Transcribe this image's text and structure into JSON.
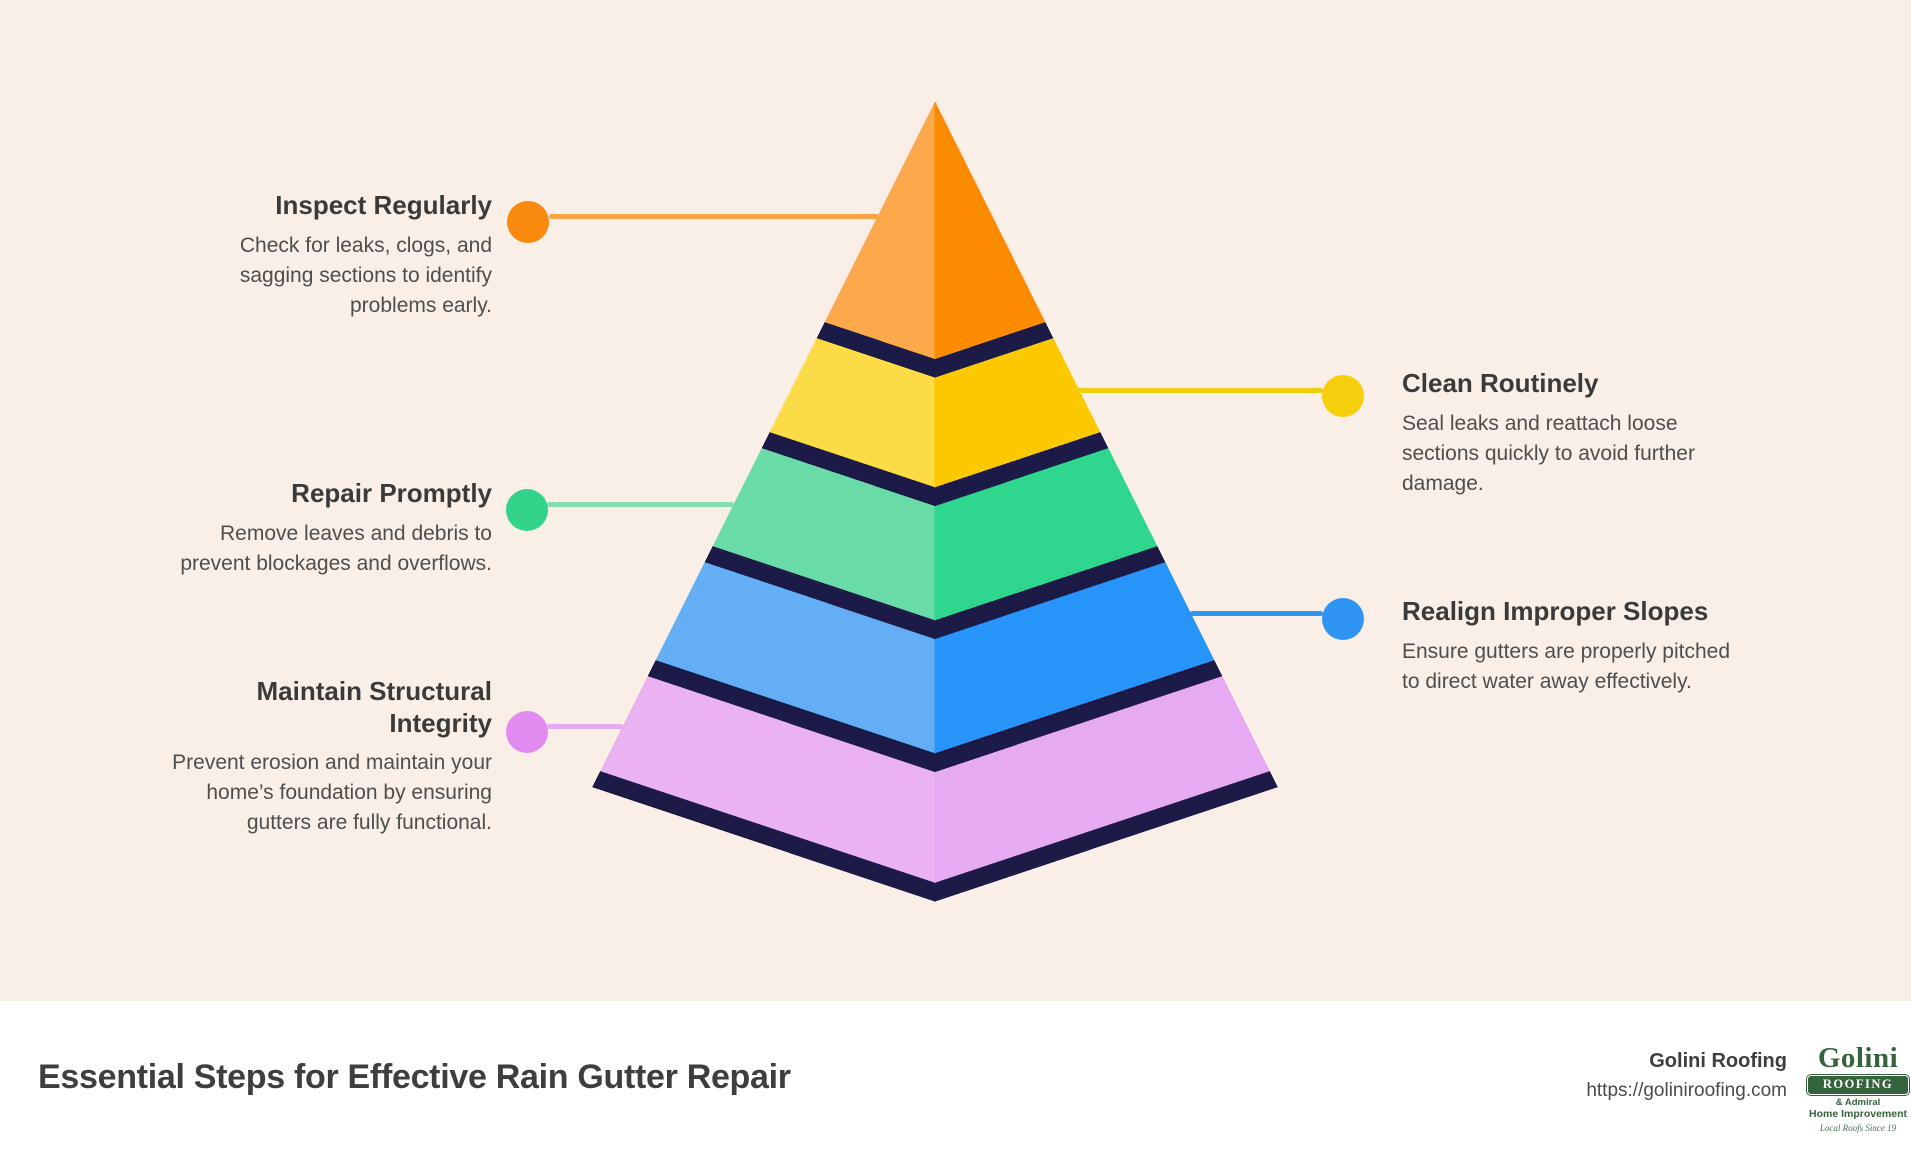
{
  "title": "Essential Steps for Effective Rain Gutter Repair",
  "brand": {
    "company": "Golini Roofing",
    "website": "https://goliniroofing.com"
  },
  "logo": {
    "name": "Golini",
    "banner": "ROOFING",
    "line1": "& Admiral",
    "line2": "Home Improvement",
    "tagline": "Local Roofs Since 19"
  },
  "steps": [
    {
      "heading": "Inspect Regularly",
      "description": "Check for leaks, clogs, and sagging sections to identify problems early.",
      "side": "left",
      "accent": "#F98A0E",
      "line": "#FBA443"
    },
    {
      "heading": "Clean Routinely",
      "description": "Seal leaks and reattach loose sections quickly to avoid further damage.",
      "side": "right",
      "accent": "#F6CE0B",
      "line": "#F0CE12"
    },
    {
      "heading": "Repair Promptly",
      "description": "Remove leaves and debris to prevent blockages and overflows.",
      "side": "left",
      "accent": "#34D38C",
      "line": "#85DDB2"
    },
    {
      "heading": "Realign Improper Slopes",
      "description": "Ensure gutters are properly pitched to direct water away effectively.",
      "side": "right",
      "accent": "#2E95F5",
      "line": "#2E95F3"
    },
    {
      "heading": "Maintain Structural Integrity",
      "description": "Prevent erosion and maintain your home’s foundation by ensuring gutters are fully functional.",
      "side": "left",
      "accent": "#E18BF0",
      "line": "#E3ABF1"
    }
  ],
  "pyramid": {
    "separator_color": "#1C1B48",
    "levels": [
      {
        "name": "level-1-inspect",
        "left": "#FCA94B",
        "right": "#FB8B00"
      },
      {
        "name": "level-2-clean",
        "left": "#FBDB46",
        "right": "#FCC800"
      },
      {
        "name": "level-3-repair",
        "left": "#68DBA6",
        "right": "#2FD68E"
      },
      {
        "name": "level-4-realign",
        "left": "#63AEF5",
        "right": "#2694F8"
      },
      {
        "name": "level-5-maintain",
        "left": "#EBB2F2",
        "right": "#E6AAF3"
      }
    ]
  },
  "colors": {
    "background": "#F9EFE7",
    "footer_bg": "#FFFFFF",
    "title_text": "#3E3E3E",
    "heading_text": "#3A3A3A",
    "body_text": "#4E4E4E",
    "logo_green": "#35633C"
  }
}
